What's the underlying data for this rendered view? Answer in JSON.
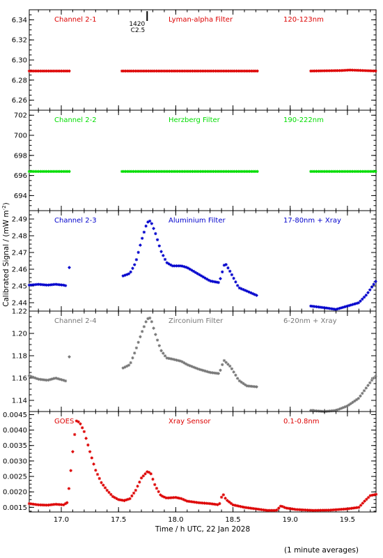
{
  "figure": {
    "xlabel": "Time / h UTC, 22 Jan 2028",
    "ylabel": "Calibrated Signal / (mW m",
    "ylabel_exp": "-2",
    "ylabel_end": ")",
    "footnote": "(1 minute averages)",
    "xlim": [
      16.72,
      19.75
    ],
    "xticks": [
      "17.0",
      "17.5",
      "18.0",
      "18.5",
      "19.0",
      "19.5"
    ],
    "annotation": {
      "line1": "1420",
      "line2": "C2.5",
      "x": 17.75
    }
  },
  "chart_data": [
    {
      "type": "scatter",
      "title": "Lyman-alpha Filter",
      "channel": "Channel 2-1",
      "band": "120-123nm",
      "color": "#dd0000",
      "ylim": [
        6.25,
        6.35
      ],
      "yticks": [
        "6.26",
        "6.28",
        "6.30",
        "6.32",
        "6.34"
      ],
      "segments": [
        {
          "x0": 16.72,
          "x1": 17.08,
          "points": [
            [
              16.72,
              6.289
            ],
            [
              17.08,
              6.289
            ]
          ]
        },
        {
          "x0": 17.53,
          "x1": 18.72,
          "points": [
            [
              17.53,
              6.289
            ],
            [
              18.72,
              6.289
            ]
          ]
        },
        {
          "x0": 19.18,
          "x1": 19.75,
          "points": [
            [
              19.18,
              6.289
            ],
            [
              19.45,
              6.2895
            ],
            [
              19.52,
              6.29
            ],
            [
              19.75,
              6.289
            ]
          ]
        }
      ]
    },
    {
      "type": "scatter",
      "title": "Herzberg Filter",
      "channel": "Channel 2-2",
      "band": "190-222nm",
      "color": "#00dd00",
      "ylim": [
        692.5,
        702.5
      ],
      "yticks": [
        "694",
        "696",
        "698",
        "700",
        "702"
      ],
      "segments": [
        {
          "x0": 16.72,
          "x1": 17.08,
          "points": [
            [
              16.72,
              696.4
            ],
            [
              17.08,
              696.4
            ]
          ]
        },
        {
          "x0": 17.53,
          "x1": 18.72,
          "points": [
            [
              17.53,
              696.4
            ],
            [
              18.72,
              696.4
            ]
          ]
        },
        {
          "x0": 19.18,
          "x1": 19.75,
          "points": [
            [
              19.18,
              696.4
            ],
            [
              19.75,
              696.4
            ]
          ]
        }
      ]
    },
    {
      "type": "scatter",
      "title": "Aluminium Filter",
      "channel": "Channel 2-3",
      "band": "17-80nm + Xray",
      "color": "#0000cc",
      "ylim": [
        2.435,
        2.495
      ],
      "yticks": [
        "2.44",
        "2.45",
        "2.46",
        "2.47",
        "2.48",
        "2.49"
      ],
      "segments": [
        {
          "x0": 16.72,
          "x1": 17.05,
          "points": [
            [
              16.72,
              2.4505
            ],
            [
              16.8,
              2.451
            ],
            [
              16.88,
              2.4505
            ],
            [
              16.95,
              2.451
            ],
            [
              17.02,
              2.4505
            ],
            [
              17.05,
              2.45
            ]
          ]
        },
        {
          "x0": 17.07,
          "x1": 17.07,
          "points": [
            [
              17.07,
              2.461
            ]
          ]
        },
        {
          "x0": 17.54,
          "x1": 18.72,
          "points": [
            [
              17.54,
              2.456
            ],
            [
              17.6,
              2.4575
            ],
            [
              17.65,
              2.464
            ],
            [
              17.7,
              2.477
            ],
            [
              17.75,
              2.488
            ],
            [
              17.78,
              2.489
            ],
            [
              17.82,
              2.482
            ],
            [
              17.87,
              2.471
            ],
            [
              17.92,
              2.464
            ],
            [
              17.97,
              2.462
            ],
            [
              18.05,
              2.462
            ],
            [
              18.1,
              2.461
            ],
            [
              18.2,
              2.457
            ],
            [
              18.3,
              2.453
            ],
            [
              18.38,
              2.452
            ],
            [
              18.43,
              2.464
            ],
            [
              18.48,
              2.458
            ],
            [
              18.55,
              2.449
            ],
            [
              18.62,
              2.447
            ],
            [
              18.72,
              2.444
            ]
          ]
        },
        {
          "x0": 19.18,
          "x1": 19.75,
          "points": [
            [
              19.18,
              2.438
            ],
            [
              19.3,
              2.437
            ],
            [
              19.4,
              2.436
            ],
            [
              19.5,
              2.438
            ],
            [
              19.6,
              2.44
            ],
            [
              19.67,
              2.445
            ],
            [
              19.72,
              2.45
            ],
            [
              19.75,
              2.453
            ]
          ]
        }
      ]
    },
    {
      "type": "scatter",
      "title": "Zirconium Filter",
      "channel": "Channel 2-4",
      "band": "6-20nm + Xray",
      "color": "#777777",
      "ylim": [
        1.13,
        1.22
      ],
      "yticks": [
        "1.14",
        "1.16",
        "1.18",
        "1.20",
        "1.22"
      ],
      "segments": [
        {
          "x0": 16.72,
          "x1": 17.05,
          "points": [
            [
              16.72,
              1.162
            ],
            [
              16.8,
              1.159
            ],
            [
              16.88,
              1.158
            ],
            [
              16.95,
              1.16
            ],
            [
              17.02,
              1.158
            ],
            [
              17.05,
              1.157
            ]
          ]
        },
        {
          "x0": 17.07,
          "x1": 17.07,
          "points": [
            [
              17.07,
              1.179
            ]
          ]
        },
        {
          "x0": 17.54,
          "x1": 18.72,
          "points": [
            [
              17.54,
              1.169
            ],
            [
              17.6,
              1.172
            ],
            [
              17.65,
              1.185
            ],
            [
              17.7,
              1.2
            ],
            [
              17.75,
              1.213
            ],
            [
              17.78,
              1.214
            ],
            [
              17.82,
              1.2
            ],
            [
              17.87,
              1.185
            ],
            [
              17.92,
              1.178
            ],
            [
              17.97,
              1.177
            ],
            [
              18.05,
              1.175
            ],
            [
              18.1,
              1.172
            ],
            [
              18.2,
              1.168
            ],
            [
              18.3,
              1.165
            ],
            [
              18.38,
              1.164
            ],
            [
              18.42,
              1.176
            ],
            [
              18.48,
              1.17
            ],
            [
              18.55,
              1.158
            ],
            [
              18.62,
              1.153
            ],
            [
              18.72,
              1.152
            ]
          ]
        },
        {
          "x0": 19.18,
          "x1": 19.75,
          "points": [
            [
              19.18,
              1.131
            ],
            [
              19.3,
              1.13
            ],
            [
              19.4,
              1.131
            ],
            [
              19.5,
              1.135
            ],
            [
              19.6,
              1.142
            ],
            [
              19.67,
              1.152
            ],
            [
              19.72,
              1.159
            ],
            [
              19.75,
              1.162
            ]
          ]
        }
      ]
    },
    {
      "type": "scatter",
      "title": "Xray Sensor",
      "channel": "GOES",
      "band": "0.1-0.8nm",
      "color": "#dd0000",
      "ylim": [
        0.00135,
        0.0046
      ],
      "yticks": [
        "0.0015",
        "0.0020",
        "0.0025",
        "0.0030",
        "0.0035",
        "0.0040",
        "0.0045"
      ],
      "segments": [
        {
          "x0": 16.72,
          "x1": 17.05,
          "points": [
            [
              16.72,
              0.00162
            ],
            [
              16.8,
              0.00158
            ],
            [
              16.88,
              0.00157
            ],
            [
              16.95,
              0.0016
            ],
            [
              17.02,
              0.00158
            ],
            [
              17.05,
              0.00165
            ]
          ]
        },
        {
          "x0": 17.05,
          "x1": 17.55,
          "points": [
            [
              17.05,
              0.00165
            ],
            [
              17.07,
              0.0022
            ],
            [
              17.1,
              0.0033
            ],
            [
              17.13,
              0.0043
            ],
            [
              17.16,
              0.00425
            ],
            [
              17.2,
              0.00395
            ],
            [
              17.25,
              0.0033
            ],
            [
              17.3,
              0.0027
            ],
            [
              17.35,
              0.0023
            ],
            [
              17.4,
              0.00205
            ],
            [
              17.45,
              0.00185
            ],
            [
              17.5,
              0.00175
            ],
            [
              17.55,
              0.00172
            ]
          ]
        },
        {
          "x0": 17.55,
          "x1": 19.75,
          "points": [
            [
              17.55,
              0.00172
            ],
            [
              17.6,
              0.00178
            ],
            [
              17.65,
              0.00205
            ],
            [
              17.7,
              0.00245
            ],
            [
              17.75,
              0.00265
            ],
            [
              17.78,
              0.00262
            ],
            [
              17.82,
              0.0022
            ],
            [
              17.87,
              0.00188
            ],
            [
              17.92,
              0.0018
            ],
            [
              18.0,
              0.00182
            ],
            [
              18.05,
              0.00178
            ],
            [
              18.1,
              0.0017
            ],
            [
              18.2,
              0.00165
            ],
            [
              18.3,
              0.00162
            ],
            [
              18.38,
              0.00158
            ],
            [
              18.41,
              0.00195
            ],
            [
              18.44,
              0.00175
            ],
            [
              18.5,
              0.00158
            ],
            [
              18.6,
              0.0015
            ],
            [
              18.7,
              0.00145
            ],
            [
              18.8,
              0.0014
            ],
            [
              18.88,
              0.0014
            ],
            [
              18.92,
              0.00155
            ],
            [
              18.96,
              0.00148
            ],
            [
              19.05,
              0.00143
            ],
            [
              19.2,
              0.0014
            ],
            [
              19.35,
              0.00141
            ],
            [
              19.5,
              0.00145
            ],
            [
              19.6,
              0.0015
            ],
            [
              19.65,
              0.0017
            ],
            [
              19.7,
              0.00188
            ],
            [
              19.75,
              0.00192
            ]
          ]
        }
      ]
    }
  ]
}
